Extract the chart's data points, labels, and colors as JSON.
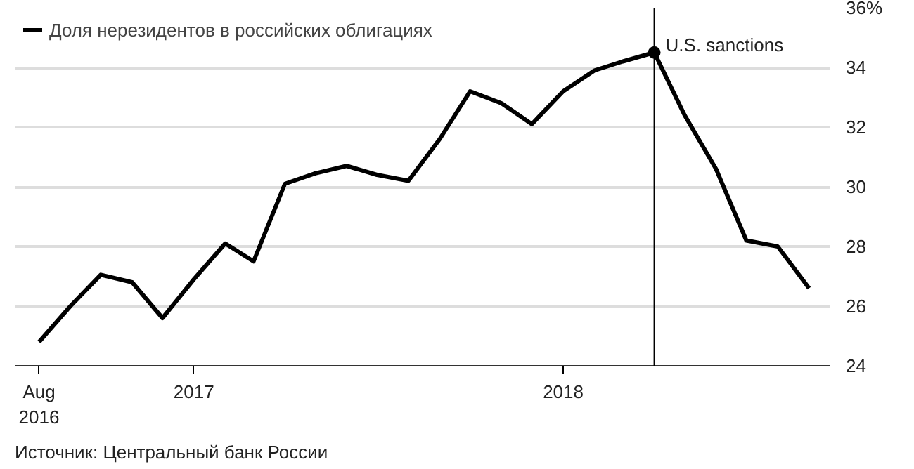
{
  "chart_data": {
    "type": "line",
    "x": [
      "2016-08",
      "2016-09",
      "2016-10",
      "2016-11",
      "2016-12",
      "2017-01",
      "2017-02",
      "2017-03",
      "2017-04",
      "2017-05",
      "2017-06",
      "2017-07",
      "2017-08",
      "2017-09",
      "2017-10",
      "2017-11",
      "2017-12",
      "2018-01",
      "2018-02",
      "2018-03",
      "2018-04",
      "2018-05",
      "2018-06",
      "2018-07",
      "2018-08",
      "2018-09"
    ],
    "series": [
      {
        "name": "Доля нерезидентов в российских облигациях",
        "color": "#000000",
        "values": [
          24.8,
          26.0,
          27.05,
          26.8,
          25.6,
          26.9,
          28.1,
          27.5,
          30.1,
          30.45,
          30.7,
          30.4,
          30.2,
          31.6,
          33.2,
          32.8,
          32.1,
          33.2,
          33.9,
          34.2,
          34.5,
          32.4,
          30.6,
          28.2,
          28.0,
          26.6
        ]
      }
    ],
    "xlim": [
      "2016-07-08",
      "2018-09-22"
    ],
    "xticks": [
      {
        "value": "2016-08",
        "label": "Aug\n2016"
      },
      {
        "value": "2017-01",
        "label": "2017"
      },
      {
        "value": "2018-01",
        "label": "2018"
      }
    ],
    "ylim": [
      24,
      36
    ],
    "yticks": [
      24,
      26,
      28,
      30,
      32,
      {
        "value": 36,
        "label": "36%"
      },
      34
    ],
    "grid": "y",
    "legend": "top left",
    "marker": "none",
    "line_style": "solid",
    "ref_lines": [
      {
        "axis": "x",
        "value": "2018-04",
        "color": "#000000"
      }
    ],
    "annotations": [
      {
        "text": "U.S. sanctions",
        "x": "2018-04",
        "y": 34.5
      },
      "Источник: Центральный банк России"
    ]
  }
}
